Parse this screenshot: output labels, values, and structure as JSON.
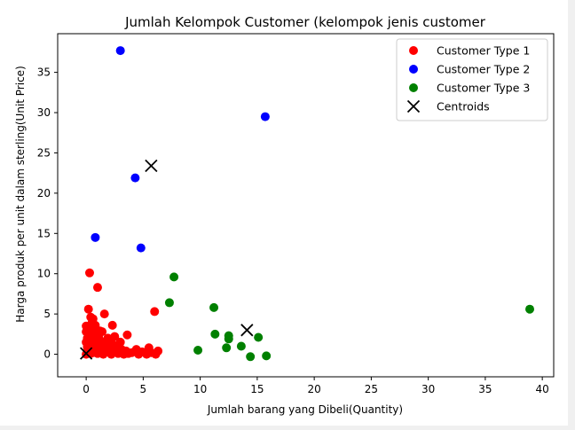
{
  "chart_data": {
    "type": "scatter",
    "title": "Jumlah Kelompok Customer (kelompok jenis customer",
    "xlabel": "Jumlah barang yang Dibeli(Quantity)",
    "ylabel": "Harga produk per unit dalam sterling(Unit Price)",
    "xlim": [
      -2.5,
      41
    ],
    "ylim": [
      -2.8,
      39.8
    ],
    "xticks": [
      0,
      5,
      10,
      15,
      20,
      25,
      30,
      35,
      40
    ],
    "yticks": [
      0,
      5,
      10,
      15,
      20,
      25,
      30,
      35
    ],
    "grid": false,
    "legend_position": "top-right",
    "series": [
      {
        "name": "Customer Type 1",
        "color": "#ff0000",
        "marker": "circle",
        "points": [
          [
            0.0,
            0.0
          ],
          [
            0.1,
            0.3
          ],
          [
            0.2,
            0.6
          ],
          [
            0.3,
            1.0
          ],
          [
            0.0,
            1.5
          ],
          [
            0.1,
            2.0
          ],
          [
            0.3,
            2.4
          ],
          [
            0.5,
            1.8
          ],
          [
            0.6,
            0.2
          ],
          [
            0.8,
            0.8
          ],
          [
            0.9,
            1.4
          ],
          [
            1.0,
            0.1
          ],
          [
            1.1,
            2.1
          ],
          [
            1.2,
            0.5
          ],
          [
            1.3,
            1.2
          ],
          [
            1.4,
            2.8
          ],
          [
            1.5,
            0.0
          ],
          [
            1.6,
            0.9
          ],
          [
            1.7,
            1.6
          ],
          [
            1.8,
            0.3
          ],
          [
            1.9,
            2.0
          ],
          [
            2.0,
            1.0
          ],
          [
            2.1,
            0.6
          ],
          [
            2.2,
            0.0
          ],
          [
            2.3,
            1.3
          ],
          [
            2.4,
            0.3
          ],
          [
            2.6,
            0.9
          ],
          [
            2.8,
            0.1
          ],
          [
            3.0,
            1.5
          ],
          [
            3.1,
            0.6
          ],
          [
            3.3,
            0.0
          ],
          [
            3.5,
            0.4
          ],
          [
            3.7,
            0.1
          ],
          [
            4.0,
            0.2
          ],
          [
            4.4,
            0.6
          ],
          [
            4.6,
            0.0
          ],
          [
            4.9,
            0.3
          ],
          [
            5.3,
            0.0
          ],
          [
            5.5,
            0.8
          ],
          [
            5.7,
            0.2
          ],
          [
            6.1,
            0.0
          ],
          [
            6.3,
            0.4
          ],
          [
            0.0,
            3.5
          ],
          [
            0.2,
            3.2
          ],
          [
            0.5,
            3.9
          ],
          [
            0.7,
            3.0
          ],
          [
            0.4,
            4.6
          ],
          [
            0.6,
            4.4
          ],
          [
            0.8,
            3.6
          ],
          [
            0.2,
            5.6
          ],
          [
            1.2,
            2.9
          ],
          [
            1.6,
            5.0
          ],
          [
            2.3,
            3.6
          ],
          [
            3.6,
            2.4
          ],
          [
            6.0,
            5.3
          ],
          [
            0.3,
            10.1
          ],
          [
            1.0,
            8.3
          ],
          [
            0.1,
            0.9
          ],
          [
            0.4,
            0.1
          ],
          [
            0.7,
            1.9
          ],
          [
            1.4,
            0.4
          ],
          [
            2.5,
            2.2
          ],
          [
            0.9,
            2.7
          ],
          [
            0.2,
            1.2
          ],
          [
            0.5,
            0.7
          ],
          [
            1.8,
            1.2
          ],
          [
            2.9,
            0.4
          ],
          [
            0.0,
            2.8
          ]
        ]
      },
      {
        "name": "Customer Type 2",
        "color": "#0000ff",
        "marker": "circle",
        "points": [
          [
            3.0,
            37.7
          ],
          [
            15.7,
            29.5
          ],
          [
            4.3,
            21.9
          ],
          [
            0.8,
            14.5
          ],
          [
            4.8,
            13.2
          ]
        ]
      },
      {
        "name": "Customer Type 3",
        "color": "#008000",
        "marker": "circle",
        "points": [
          [
            7.7,
            9.6
          ],
          [
            7.3,
            6.4
          ],
          [
            11.2,
            5.8
          ],
          [
            38.9,
            5.6
          ],
          [
            11.3,
            2.5
          ],
          [
            12.5,
            2.3
          ],
          [
            12.5,
            1.9
          ],
          [
            15.1,
            2.1
          ],
          [
            12.3,
            0.8
          ],
          [
            13.6,
            1.0
          ],
          [
            9.8,
            0.5
          ],
          [
            14.4,
            -0.3
          ],
          [
            15.8,
            -0.2
          ]
        ]
      },
      {
        "name": "Centroids",
        "color": "#000000",
        "marker": "x",
        "points": [
          [
            5.7,
            23.4
          ],
          [
            14.1,
            3.0
          ],
          [
            0.0,
            0.1
          ]
        ]
      }
    ]
  }
}
